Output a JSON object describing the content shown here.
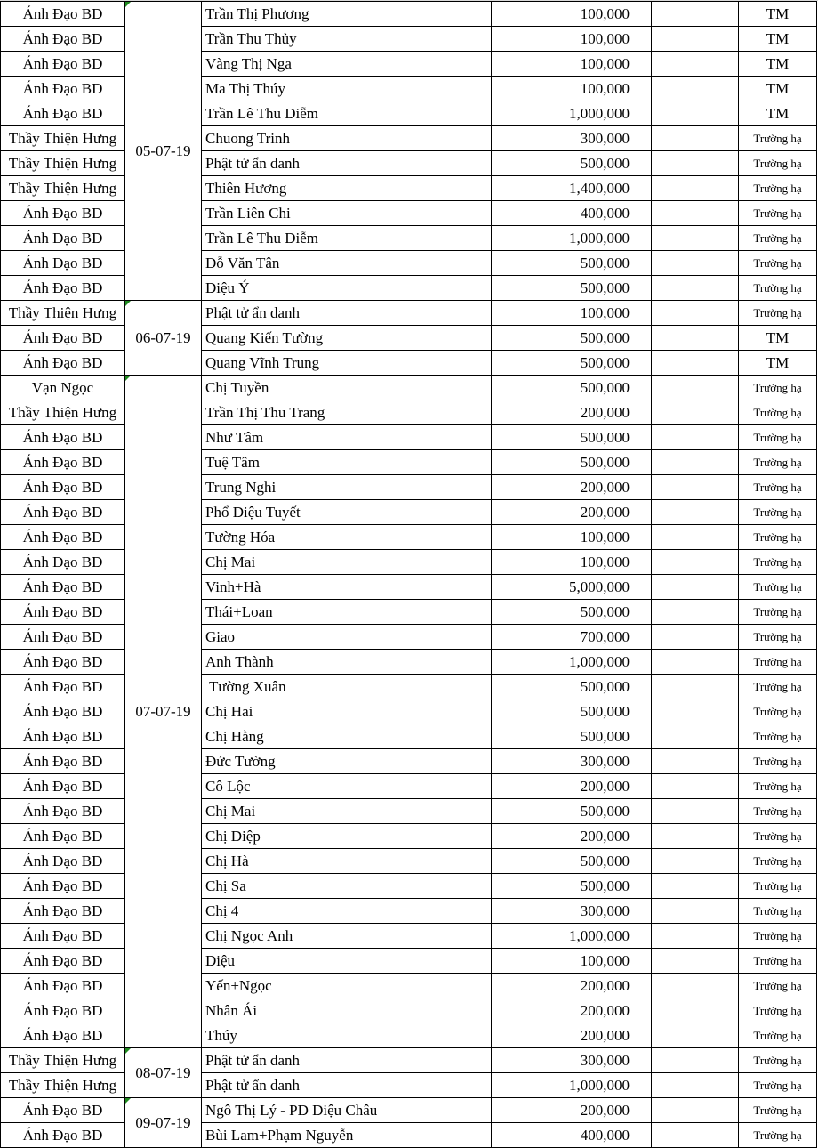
{
  "groups": [
    {
      "date": "05-07-19",
      "rows": [
        {
          "source": "Ánh Đạo BD",
          "name": "Trần Thị Phương",
          "amount": "100,000",
          "note": "TM"
        },
        {
          "source": "Ánh Đạo BD",
          "name": "Trần Thu Thủy",
          "amount": "100,000",
          "note": "TM"
        },
        {
          "source": "Ánh Đạo BD",
          "name": "Vàng Thị Nga",
          "amount": "100,000",
          "note": "TM"
        },
        {
          "source": "Ánh Đạo BD",
          "name": "Ma Thị Thúy",
          "amount": "100,000",
          "note": "TM"
        },
        {
          "source": "Ánh Đạo BD",
          "name": "Trần Lê Thu Diễm",
          "amount": "1,000,000",
          "note": "TM"
        },
        {
          "source": "Thầy Thiện Hưng",
          "name": "Chuong Trinh",
          "amount": "300,000",
          "note": "Trường hạ"
        },
        {
          "source": "Thầy Thiện Hưng",
          "name": "Phật tử ẩn danh",
          "amount": "500,000",
          "note": "Trường hạ"
        },
        {
          "source": "Thầy Thiện Hưng",
          "name": "Thiên Hương",
          "amount": "1,400,000",
          "note": "Trường hạ"
        },
        {
          "source": "Ánh Đạo BD",
          "name": "Trần Liên Chi",
          "amount": "400,000",
          "note": "Trường hạ"
        },
        {
          "source": "Ánh Đạo BD",
          "name": "Trần Lê Thu Diễm",
          "amount": "1,000,000",
          "note": "Trường hạ"
        },
        {
          "source": "Ánh Đạo BD",
          "name": "Đỗ Văn Tân",
          "amount": "500,000",
          "note": "Trường hạ"
        },
        {
          "source": "Ánh Đạo BD",
          "name": "Diệu Ý",
          "amount": "500,000",
          "note": "Trường hạ"
        }
      ]
    },
    {
      "date": "06-07-19",
      "rows": [
        {
          "source": "Thầy Thiện Hưng",
          "name": "Phật tử ẩn danh",
          "amount": "100,000",
          "note": "Trường hạ"
        },
        {
          "source": "Ánh Đạo BD",
          "name": "Quang Kiến Tường",
          "amount": "500,000",
          "note": "TM"
        },
        {
          "source": "Ánh Đạo BD",
          "name": "Quang Vĩnh Trung",
          "amount": "500,000",
          "note": "TM"
        }
      ]
    },
    {
      "date": "07-07-19",
      "rows": [
        {
          "source": "Vạn Ngọc",
          "name": "Chị Tuyền",
          "amount": "500,000",
          "note": "Trường hạ"
        },
        {
          "source": "Thầy Thiện Hưng",
          "name": "Trần Thị Thu Trang",
          "amount": "200,000",
          "note": "Trường hạ"
        },
        {
          "source": "Ánh Đạo BD",
          "name": "Như Tâm",
          "amount": "500,000",
          "note": "Trường hạ"
        },
        {
          "source": "Ánh Đạo BD",
          "name": "Tuệ Tâm",
          "amount": "500,000",
          "note": "Trường hạ"
        },
        {
          "source": "Ánh Đạo BD",
          "name": "Trung Nghi",
          "amount": "200,000",
          "note": "Trường hạ"
        },
        {
          "source": "Ánh Đạo BD",
          "name": "Phổ Diệu Tuyết",
          "amount": "200,000",
          "note": "Trường hạ"
        },
        {
          "source": "Ánh Đạo BD",
          "name": "Tường Hóa",
          "amount": "100,000",
          "note": "Trường hạ"
        },
        {
          "source": "Ánh Đạo BD",
          "name": "Chị Mai",
          "amount": "100,000",
          "note": "Trường hạ"
        },
        {
          "source": "Ánh Đạo BD",
          "name": "Vinh+Hà",
          "amount": "5,000,000",
          "note": "Trường hạ"
        },
        {
          "source": "Ánh Đạo BD",
          "name": "Thái+Loan",
          "amount": "500,000",
          "note": "Trường hạ"
        },
        {
          "source": "Ánh Đạo BD",
          "name": "Giao",
          "amount": "700,000",
          "note": "Trường hạ"
        },
        {
          "source": "Ánh Đạo BD",
          "name": "Anh Thành",
          "amount": "1,000,000",
          "note": "Trường hạ"
        },
        {
          "source": "Ánh Đạo BD",
          "name": " Tường Xuân",
          "amount": "500,000",
          "note": "Trường hạ"
        },
        {
          "source": "Ánh Đạo BD",
          "name": "Chị Hai",
          "amount": "500,000",
          "note": "Trường hạ"
        },
        {
          "source": "Ánh Đạo BD",
          "name": "Chị Hằng",
          "amount": "500,000",
          "note": "Trường hạ"
        },
        {
          "source": "Ánh Đạo BD",
          "name": "Đức Tường",
          "amount": "300,000",
          "note": "Trường hạ"
        },
        {
          "source": "Ánh Đạo BD",
          "name": "Cô Lộc",
          "amount": "200,000",
          "note": "Trường hạ"
        },
        {
          "source": "Ánh Đạo BD",
          "name": "Chị Mai",
          "amount": "500,000",
          "note": "Trường hạ"
        },
        {
          "source": "Ánh Đạo BD",
          "name": "Chị Diệp",
          "amount": "200,000",
          "note": "Trường hạ"
        },
        {
          "source": "Ánh Đạo BD",
          "name": "Chị Hà",
          "amount": "500,000",
          "note": "Trường hạ"
        },
        {
          "source": "Ánh Đạo BD",
          "name": "Chị Sa",
          "amount": "500,000",
          "note": "Trường hạ"
        },
        {
          "source": "Ánh Đạo BD",
          "name": "Chị 4",
          "amount": "300,000",
          "note": "Trường hạ"
        },
        {
          "source": "Ánh Đạo BD",
          "name": "Chị Ngọc Anh",
          "amount": "1,000,000",
          "note": "Trường hạ"
        },
        {
          "source": "Ánh Đạo BD",
          "name": "Diệu",
          "amount": "100,000",
          "note": "Trường hạ"
        },
        {
          "source": "Ánh Đạo BD",
          "name": "Yến+Ngọc",
          "amount": "200,000",
          "note": "Trường hạ"
        },
        {
          "source": "Ánh Đạo BD",
          "name": "Nhân Ái",
          "amount": "200,000",
          "note": "Trường hạ"
        },
        {
          "source": "Ánh Đạo BD",
          "name": "Thúy",
          "amount": "200,000",
          "note": "Trường hạ"
        }
      ]
    },
    {
      "date": "08-07-19",
      "rows": [
        {
          "source": "Thầy Thiện Hưng",
          "name": "Phật tử ẩn danh",
          "amount": "300,000",
          "note": "Trường hạ"
        },
        {
          "source": "Thầy Thiện Hưng",
          "name": "Phật tử ẩn danh",
          "amount": "1,000,000",
          "note": "Trường hạ"
        }
      ]
    },
    {
      "date": "09-07-19",
      "rows": [
        {
          "source": "Ánh Đạo BD",
          "name": "Ngô Thị Lý - PD Diệu Châu",
          "amount": "200,000",
          "note": "Trường hạ"
        },
        {
          "source": "Ánh Đạo BD",
          "name": "Bùi Lam+Phạm Nguyễn",
          "amount": "400,000",
          "note": "Trường hạ"
        }
      ]
    }
  ]
}
